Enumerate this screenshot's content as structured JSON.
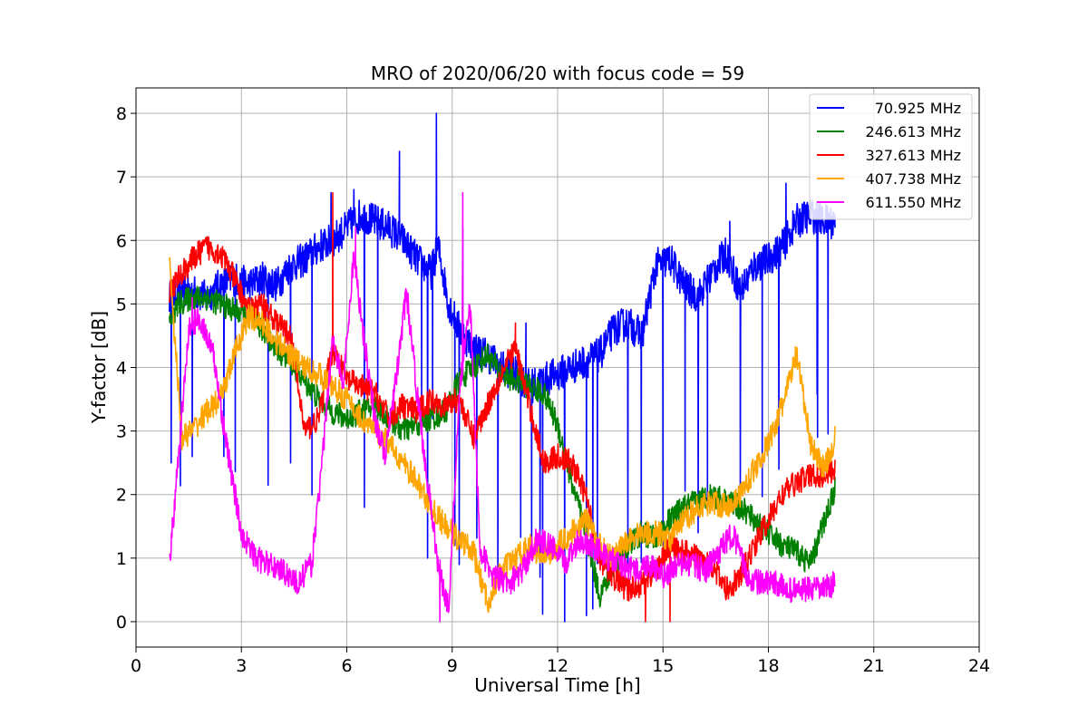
{
  "chart_data": {
    "type": "line",
    "title": "MRO of 2020/06/20 with focus code = 59",
    "xlabel": "Universal Time [h]",
    "ylabel": "Y-factor [dB]",
    "xlim": [
      0,
      24
    ],
    "ylim": [
      -0.4,
      8.4
    ],
    "xticks": [
      0,
      3,
      6,
      9,
      12,
      15,
      18,
      21,
      24
    ],
    "yticks": [
      0,
      1,
      2,
      3,
      4,
      5,
      6,
      7,
      8
    ],
    "grid": true,
    "legend_position": "top-right",
    "series": [
      {
        "name": "70.925 MHz",
        "color": "#0000ff",
        "x": [
          0.95,
          1.2,
          1.6,
          2.0,
          2.4,
          2.8,
          3.2,
          3.6,
          4.0,
          4.4,
          4.8,
          5.2,
          5.6,
          6.0,
          6.4,
          6.8,
          7.2,
          7.6,
          8.0,
          8.4,
          8.6,
          8.9,
          9.2,
          9.6,
          10.0,
          10.4,
          10.8,
          11.2,
          11.6,
          12.0,
          12.4,
          12.8,
          13.2,
          13.6,
          14.0,
          14.4,
          14.8,
          15.2,
          15.6,
          16.0,
          16.4,
          16.8,
          17.2,
          17.6,
          18.0,
          18.4,
          18.8,
          19.2,
          19.6,
          19.9
        ],
        "y": [
          5.1,
          5.2,
          5.2,
          5.1,
          5.3,
          5.4,
          5.3,
          5.4,
          5.3,
          5.6,
          5.7,
          5.9,
          6.0,
          6.2,
          6.4,
          6.3,
          6.2,
          6.0,
          5.7,
          5.5,
          5.9,
          5.0,
          4.6,
          4.3,
          4.2,
          4.0,
          3.9,
          3.7,
          3.8,
          3.9,
          4.0,
          4.1,
          4.2,
          4.6,
          4.7,
          4.5,
          5.6,
          5.7,
          5.3,
          5.1,
          5.5,
          5.8,
          5.2,
          5.6,
          5.7,
          5.9,
          6.3,
          6.4,
          6.3,
          6.3
        ],
        "spikes": [
          [
            5.55,
            6.75
          ],
          [
            6.2,
            6.8
          ],
          [
            7.5,
            7.4
          ],
          [
            8.55,
            8.0
          ],
          [
            9.3,
            6.2
          ],
          [
            11.1,
            4.7
          ],
          [
            16.9,
            6.3
          ],
          [
            18.5,
            6.9
          ]
        ],
        "dips": [
          [
            1.0,
            2.5
          ],
          [
            1.6,
            2.6
          ],
          [
            2.5,
            2.6
          ],
          [
            4.4,
            2.5
          ],
          [
            6.5,
            1.8
          ],
          [
            8.3,
            1.0
          ],
          [
            9.2,
            0.9
          ],
          [
            10.3,
            0.8
          ],
          [
            11.5,
            0.7
          ],
          [
            12.2,
            0.0
          ],
          [
            13.0,
            0.2
          ],
          [
            14.0,
            0.8
          ],
          [
            15.0,
            1.2
          ],
          [
            16.0,
            1.4
          ],
          [
            17.2,
            2.1
          ],
          [
            18.3,
            2.4
          ],
          [
            19.4,
            2.9
          ]
        ]
      },
      {
        "name": "246.613 MHz",
        "color": "#008000",
        "x": [
          0.95,
          1.2,
          1.6,
          2.0,
          2.4,
          2.8,
          3.2,
          3.6,
          4.0,
          4.4,
          4.8,
          5.2,
          5.6,
          6.0,
          6.4,
          6.8,
          7.2,
          7.6,
          8.0,
          8.4,
          8.8,
          9.2,
          9.6,
          10.0,
          10.4,
          10.8,
          11.2,
          11.6,
          12.0,
          12.4,
          12.8,
          13.2,
          13.6,
          14.0,
          14.4,
          14.8,
          15.2,
          15.6,
          16.0,
          16.4,
          16.8,
          17.2,
          17.6,
          18.0,
          18.4,
          18.8,
          19.2,
          19.6,
          19.9
        ],
        "y": [
          4.7,
          5.0,
          5.1,
          5.1,
          5.0,
          4.9,
          4.8,
          4.6,
          4.3,
          4.1,
          3.8,
          3.5,
          3.3,
          3.2,
          3.3,
          3.4,
          3.2,
          3.0,
          3.1,
          3.2,
          3.3,
          3.8,
          4.0,
          4.2,
          3.9,
          3.8,
          3.7,
          3.6,
          3.1,
          2.2,
          1.4,
          0.4,
          0.9,
          1.2,
          1.4,
          1.3,
          1.6,
          1.8,
          1.9,
          2.0,
          1.9,
          1.8,
          1.6,
          1.4,
          1.2,
          1.1,
          0.9,
          1.6,
          2.1
        ]
      },
      {
        "name": "327.613 MHz",
        "color": "#ff0000",
        "x": [
          0.95,
          1.2,
          1.6,
          2.0,
          2.4,
          2.8,
          3.2,
          3.6,
          4.0,
          4.4,
          4.8,
          5.2,
          5.6,
          6.0,
          6.4,
          6.8,
          7.2,
          7.6,
          8.0,
          8.4,
          8.8,
          9.2,
          9.6,
          10.0,
          10.4,
          10.8,
          11.2,
          11.6,
          12.0,
          12.4,
          12.8,
          13.2,
          13.6,
          14.0,
          14.4,
          14.8,
          15.2,
          15.6,
          16.0,
          16.4,
          16.8,
          17.2,
          17.6,
          18.0,
          18.4,
          18.8,
          19.2,
          19.6,
          19.9
        ],
        "y": [
          5.2,
          5.4,
          5.7,
          5.9,
          5.8,
          5.4,
          4.9,
          5.0,
          4.7,
          4.5,
          3.0,
          3.2,
          4.3,
          3.8,
          3.7,
          3.6,
          3.2,
          3.4,
          3.3,
          3.5,
          3.4,
          3.5,
          2.9,
          3.4,
          3.9,
          4.3,
          3.4,
          2.5,
          2.6,
          2.5,
          2.0,
          1.0,
          0.7,
          0.5,
          0.6,
          0.8,
          1.2,
          1.1,
          1.0,
          0.9,
          0.5,
          0.7,
          1.2,
          1.6,
          2.0,
          2.2,
          2.3,
          2.3,
          2.4
        ],
        "spikes": [
          [
            5.6,
            6.75
          ],
          [
            10.8,
            4.7
          ]
        ],
        "dips": [
          [
            14.5,
            0.0
          ],
          [
            15.2,
            0.0
          ]
        ]
      },
      {
        "name": "407.738 MHz",
        "color": "#ffa500",
        "x": [
          0.95,
          1.1,
          1.3,
          1.6,
          2.0,
          2.4,
          2.8,
          3.2,
          3.6,
          4.0,
          4.4,
          4.8,
          5.2,
          5.6,
          6.0,
          6.4,
          6.8,
          7.2,
          7.6,
          8.0,
          8.4,
          8.8,
          9.2,
          9.6,
          10.0,
          10.4,
          10.8,
          11.2,
          11.6,
          12.0,
          12.4,
          12.8,
          13.2,
          13.6,
          14.0,
          14.4,
          14.8,
          15.2,
          15.6,
          16.0,
          16.4,
          16.8,
          17.2,
          17.6,
          18.0,
          18.4,
          18.8,
          19.2,
          19.6,
          19.9
        ],
        "y": [
          5.8,
          4.5,
          2.9,
          3.0,
          3.3,
          3.5,
          4.2,
          4.8,
          4.7,
          4.4,
          4.2,
          4.0,
          3.9,
          3.7,
          3.5,
          3.2,
          3.0,
          2.8,
          2.5,
          2.2,
          1.8,
          1.5,
          1.3,
          1.1,
          0.3,
          0.8,
          1.0,
          1.2,
          1.0,
          1.2,
          1.4,
          1.6,
          1.2,
          1.0,
          1.3,
          1.4,
          1.4,
          1.3,
          1.6,
          1.8,
          1.9,
          1.8,
          2.0,
          2.4,
          2.8,
          3.4,
          4.2,
          2.8,
          2.4,
          2.9
        ]
      },
      {
        "name": "611.550 MHz",
        "color": "#ff00ff",
        "x": [
          0.95,
          1.2,
          1.5,
          1.8,
          2.2,
          2.6,
          3.0,
          3.4,
          3.8,
          4.2,
          4.6,
          5.0,
          5.3,
          5.6,
          5.9,
          6.2,
          6.5,
          6.8,
          7.1,
          7.4,
          7.7,
          8.0,
          8.3,
          8.6,
          8.9,
          9.2,
          9.5,
          9.8,
          10.2,
          10.6,
          11.0,
          11.4,
          11.8,
          12.2,
          12.6,
          13.0,
          13.4,
          13.8,
          14.2,
          14.6,
          15.0,
          15.4,
          15.8,
          16.2,
          16.6,
          17.0,
          17.4,
          17.8,
          18.2,
          18.6,
          19.0,
          19.4,
          19.9
        ],
        "y": [
          0.9,
          2.5,
          4.6,
          4.8,
          4.2,
          2.7,
          1.4,
          1.0,
          0.9,
          0.8,
          0.6,
          0.9,
          2.5,
          4.5,
          3.7,
          5.8,
          4.4,
          3.2,
          2.6,
          3.8,
          5.2,
          3.6,
          2.2,
          0.9,
          0.2,
          3.6,
          5.1,
          1.1,
          0.7,
          0.6,
          0.8,
          1.3,
          1.2,
          0.9,
          1.3,
          1.2,
          1.0,
          0.9,
          0.8,
          0.9,
          0.7,
          0.9,
          0.9,
          0.8,
          1.1,
          1.4,
          0.7,
          0.6,
          0.6,
          0.5,
          0.5,
          0.5,
          0.6
        ],
        "spikes": [
          [
            6.25,
            6.2
          ],
          [
            9.3,
            6.75
          ],
          [
            1.6,
            5.1
          ]
        ],
        "dips": [
          [
            8.65,
            0.0
          ]
        ]
      }
    ]
  }
}
